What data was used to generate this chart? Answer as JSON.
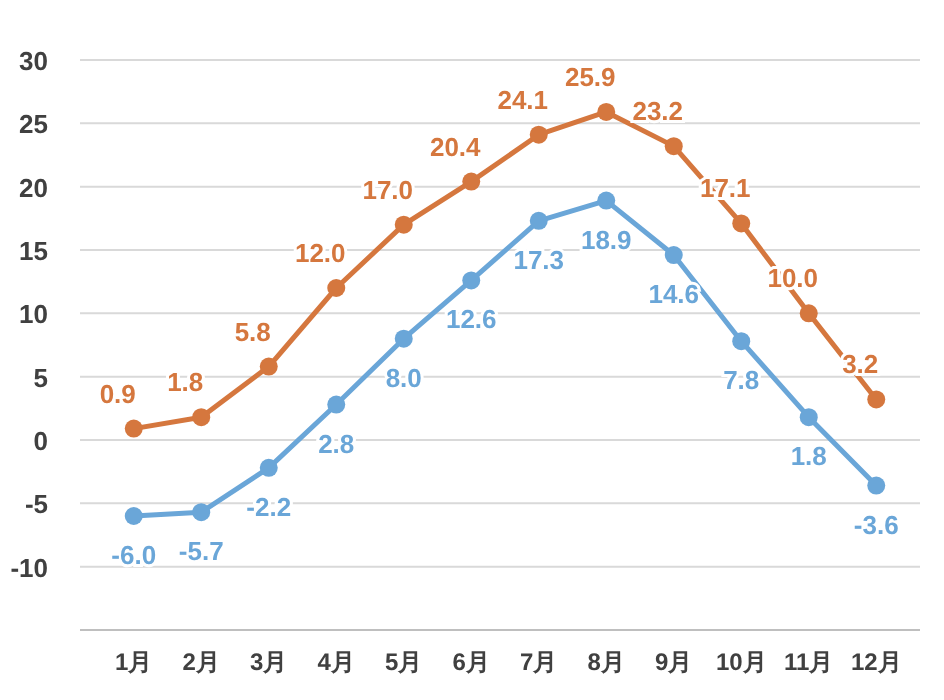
{
  "chart_data": {
    "type": "line",
    "categories": [
      "1月",
      "2月",
      "3月",
      "4月",
      "5月",
      "6月",
      "7月",
      "8月",
      "9月",
      "10月",
      "11月",
      "12月"
    ],
    "series": [
      {
        "color": "#d5773e",
        "values": [
          0.9,
          1.8,
          5.8,
          12.0,
          17.0,
          20.4,
          24.1,
          25.9,
          23.2,
          17.1,
          10.0,
          3.2
        ],
        "value_labels": [
          "0.9",
          "1.8",
          "5.8",
          "12.0",
          "17.0",
          "20.4",
          "24.1",
          "25.9",
          "23.2",
          "17.1",
          "10.0",
          "3.2"
        ]
      },
      {
        "color": "#6aa6d8",
        "values": [
          -6.0,
          -5.7,
          -2.2,
          2.8,
          8.0,
          12.6,
          17.3,
          18.9,
          14.6,
          7.8,
          1.8,
          -3.6
        ],
        "value_labels": [
          "-6.0",
          "-5.7",
          "-2.2",
          "2.8",
          "8.0",
          "12.6",
          "17.3",
          "18.9",
          "14.6",
          "7.8",
          "1.8",
          "-3.6"
        ]
      }
    ],
    "ylim": [
      -15,
      30
    ],
    "yticks": [
      -10,
      -5,
      0,
      5,
      10,
      15,
      20,
      25,
      30
    ],
    "grid": "y",
    "marker": "circle",
    "line_style": "solid"
  }
}
